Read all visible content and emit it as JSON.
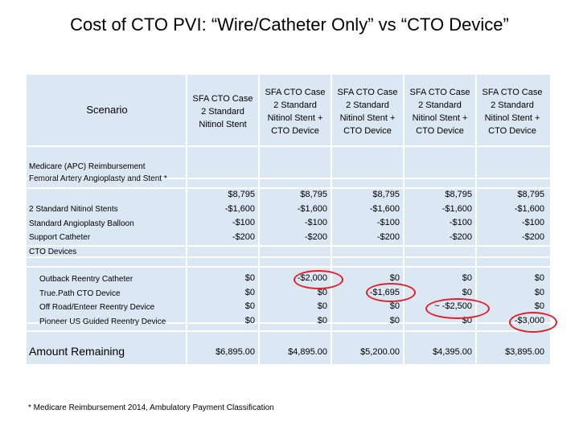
{
  "title": "Cost of CTO PVI: “Wire/Catheter Only” vs “CTO Device”",
  "table": {
    "scenario_label": "Scenario",
    "columns": [
      {
        "header": [
          "SFA CTO Case",
          "2 Standard",
          "Nitinol Stent"
        ]
      },
      {
        "header": [
          "SFA CTO Case",
          "2 Standard",
          "Nitinol Stent +",
          "CTO Device"
        ]
      },
      {
        "header": [
          "SFA CTO Case",
          "2 Standard",
          "Nitinol Stent +",
          "CTO Device"
        ]
      },
      {
        "header": [
          "SFA CTO Case",
          "2 Standard",
          "Nitinol Stent +",
          "CTO Device"
        ]
      },
      {
        "header": [
          "SFA CTO Case",
          "2 Standard",
          "Nitinol Stent +",
          "CTO Device"
        ]
      }
    ],
    "reimbursement_labels": [
      "Medicare (APC) Reimbursement",
      "Femoral Artery Angioplasty and Stent *"
    ],
    "cost_labels": [
      "2 Standard Nitinol Stents",
      "Standard Angioplasty Balloon",
      "Support Catheter",
      "CTO  Devices"
    ],
    "cost_values": [
      [
        "$8,795",
        "-$1,600",
        "-$100",
        "-$200"
      ],
      [
        "$8,795",
        "-$1,600",
        "-$100",
        "-$200"
      ],
      [
        "$8,795",
        "-$1,600",
        "-$100",
        "-$200"
      ],
      [
        "$8,795",
        "-$1,600",
        "-$100",
        "-$200"
      ],
      [
        "$8,795",
        "-$1,600",
        "-$100",
        "-$200"
      ]
    ],
    "device_labels": [
      "Outback Reentry Catheter",
      "True.Path CTO Device",
      "Off Road/Enteer Reentry Device",
      "Pioneer US Guided Reentry Device"
    ],
    "device_values": [
      [
        "$0",
        "$0",
        "$0",
        "$0"
      ],
      [
        "-$2,000",
        "$0",
        "$0",
        "$0"
      ],
      [
        "$0",
        "-$1,695",
        "$0",
        "$0"
      ],
      [
        "$0",
        "$0",
        "~ -$2,500",
        "$0"
      ],
      [
        "$0",
        "$0",
        "$0",
        "-$3,000"
      ]
    ],
    "amount_label": "Amount Remaining",
    "amounts": [
      "$6,895.00",
      "$4,895.00",
      "$5,200.00",
      "$4,395.00",
      "$3,895.00"
    ]
  },
  "footnote": "* Medicare Reimbursement 2014, Ambulatory Payment Classification",
  "colors": {
    "band": "#dbe7f3",
    "highlight_ring": "#e0202a"
  }
}
